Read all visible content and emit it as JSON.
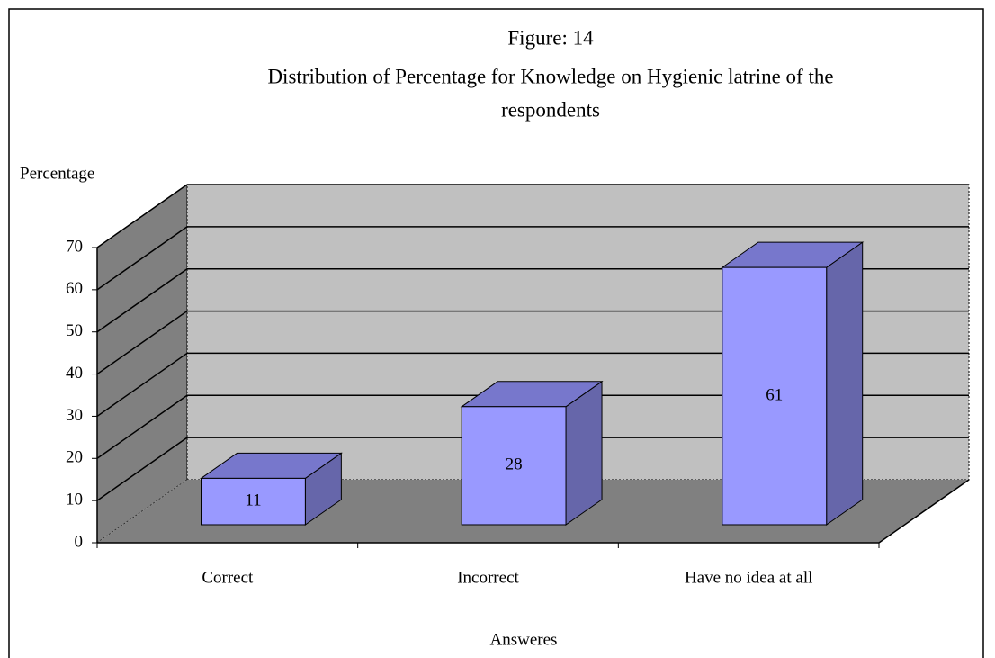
{
  "chart_data": {
    "type": "bar3d",
    "title": [
      "Figure: 14",
      "Distribution of Percentage for Knowledge on Hygienic latrine of the",
      "respondents"
    ],
    "y_label": "Percentage",
    "x_label": "Answeres",
    "categories": [
      "Correct",
      "Incorrect",
      "Have no idea at all"
    ],
    "values": [
      11,
      28,
      61
    ],
    "color": "#9999ff",
    "ylim": [
      0,
      70
    ],
    "yticks": [
      0,
      10,
      20,
      30,
      40,
      50,
      60,
      70
    ],
    "grid": true
  }
}
